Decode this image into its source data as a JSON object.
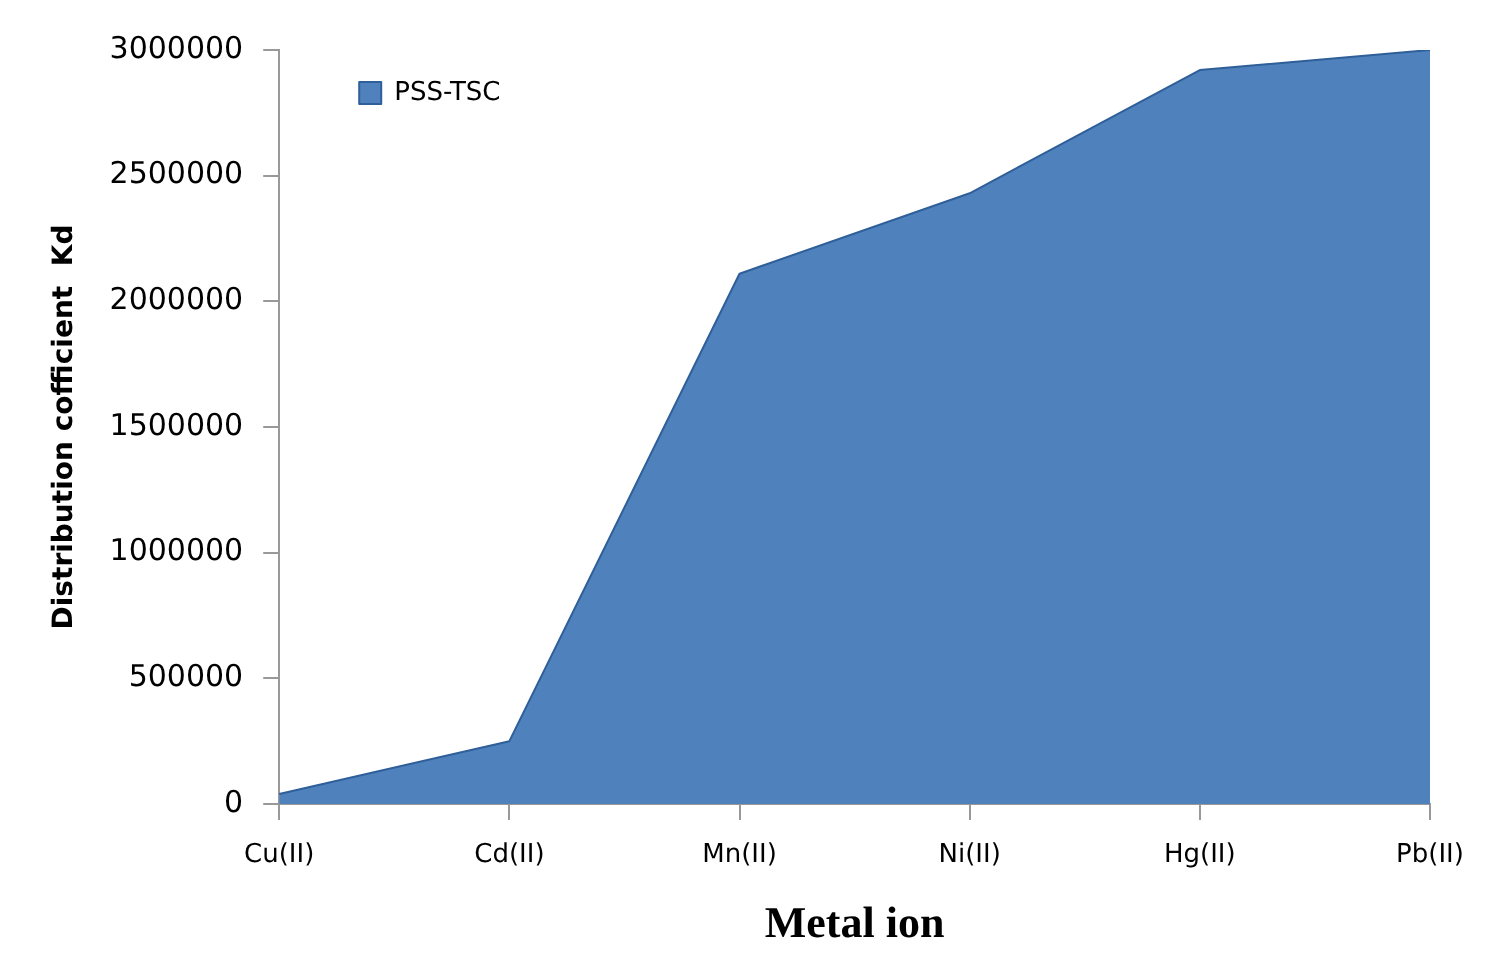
{
  "chart_data": {
    "type": "area",
    "xlabel": "Metal ion",
    "ylabel": "Distribution cofficient  Kd",
    "categories": [
      "Cu(II)",
      "Cd(II)",
      "Mn(II)",
      "Ni(II)",
      "Hg(II)",
      "Pb(II)"
    ],
    "series": [
      {
        "name": "PSS-TSC",
        "color": "#4f81bd",
        "values": [
          40000,
          250000,
          2110000,
          2430000,
          2920000,
          3000000
        ]
      }
    ],
    "ylim": [
      0,
      3000000
    ],
    "yticks": [
      0,
      500000,
      1000000,
      1500000,
      2000000,
      2500000,
      3000000
    ],
    "grid": false,
    "legend": "top left"
  }
}
